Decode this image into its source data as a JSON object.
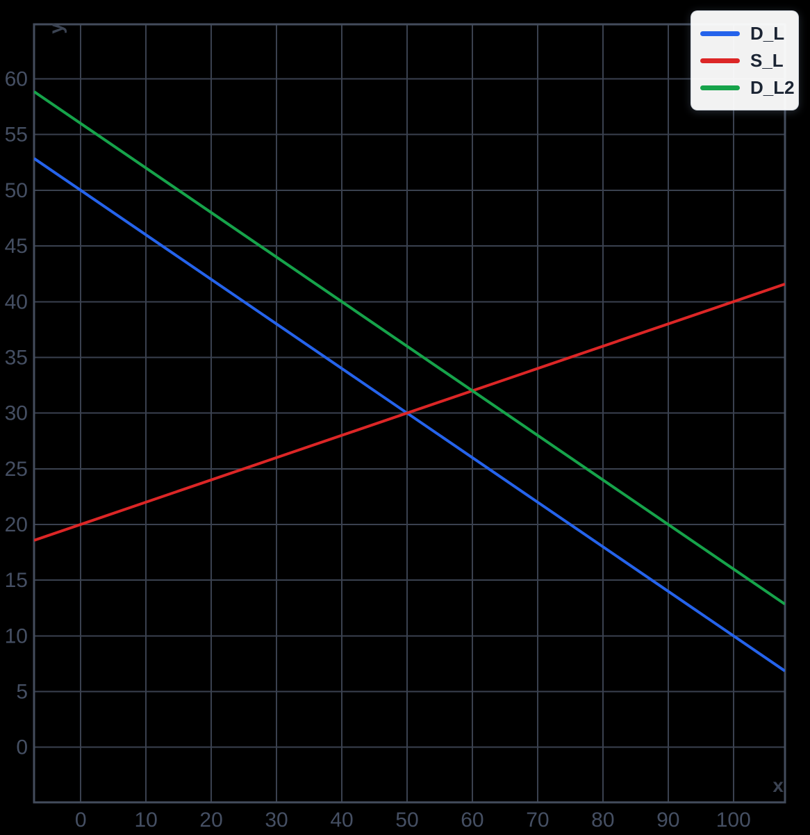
{
  "chart_data": {
    "type": "line",
    "title": "",
    "xlabel": "x",
    "ylabel": "y",
    "xlim": [
      -7.15,
      107.9
    ],
    "ylim": [
      -4.95,
      64.9
    ],
    "x_ticks": [
      0,
      10,
      20,
      30,
      40,
      50,
      60,
      70,
      80,
      90,
      100
    ],
    "y_ticks": [
      0,
      5,
      10,
      15,
      20,
      25,
      30,
      35,
      40,
      45,
      50,
      55,
      60
    ],
    "grid": true,
    "legend_position": "top-right",
    "series": [
      {
        "name": "D_L",
        "form": "linear",
        "slope": -0.4,
        "intercept": 50,
        "color": "#2563eb"
      },
      {
        "name": "S_L",
        "form": "linear",
        "slope": 0.2,
        "intercept": 20,
        "color": "#dc2626"
      },
      {
        "name": "D_L2",
        "form": "linear",
        "slope": -0.4,
        "intercept": 56,
        "color": "#16a34a"
      }
    ],
    "intersections": [
      {
        "lines": [
          "D_L",
          "S_L"
        ],
        "x": 50,
        "y": 30
      },
      {
        "lines": [
          "S_L",
          "D_L2"
        ],
        "x": 60,
        "y": 32
      }
    ]
  },
  "theme": {
    "background": "#000000",
    "grid_color": "#3a414f",
    "border_color": "#434c5c",
    "tick_label_color": "#454f63",
    "axis_label_color": "#3b4352",
    "legend_bg": "rgba(255,255,255,0.95)",
    "legend_text_color": "#1b2433"
  }
}
